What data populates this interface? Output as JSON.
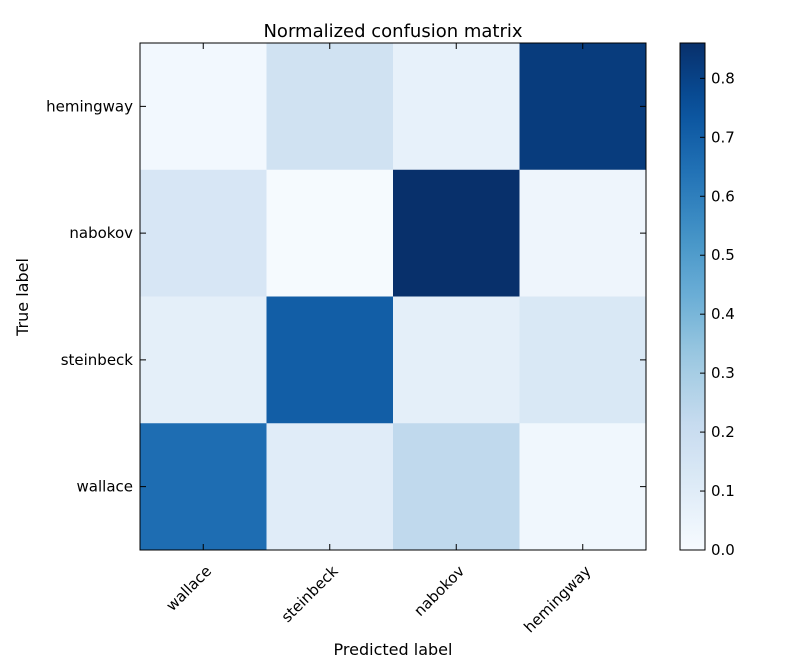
{
  "chart_data": {
    "type": "heatmap",
    "title": "Normalized confusion matrix",
    "xlabel": "Predicted label",
    "ylabel": "True label",
    "x_categories": [
      "wallace",
      "steinbeck",
      "nabokov",
      "hemingway"
    ],
    "y_categories": [
      "hemingway",
      "nabokov",
      "steinbeck",
      "wallace"
    ],
    "values": [
      [
        0.02,
        0.17,
        0.07,
        0.82
      ],
      [
        0.14,
        0.01,
        0.86,
        0.04
      ],
      [
        0.08,
        0.71,
        0.08,
        0.13
      ],
      [
        0.66,
        0.1,
        0.23,
        0.03
      ]
    ],
    "colormap": "Blues",
    "colorbar": {
      "min": 0.0,
      "max": 0.86,
      "ticks": [
        "0.0",
        "0.1",
        "0.2",
        "0.3",
        "0.4",
        "0.5",
        "0.6",
        "0.7",
        "0.8"
      ]
    },
    "grid": false
  }
}
